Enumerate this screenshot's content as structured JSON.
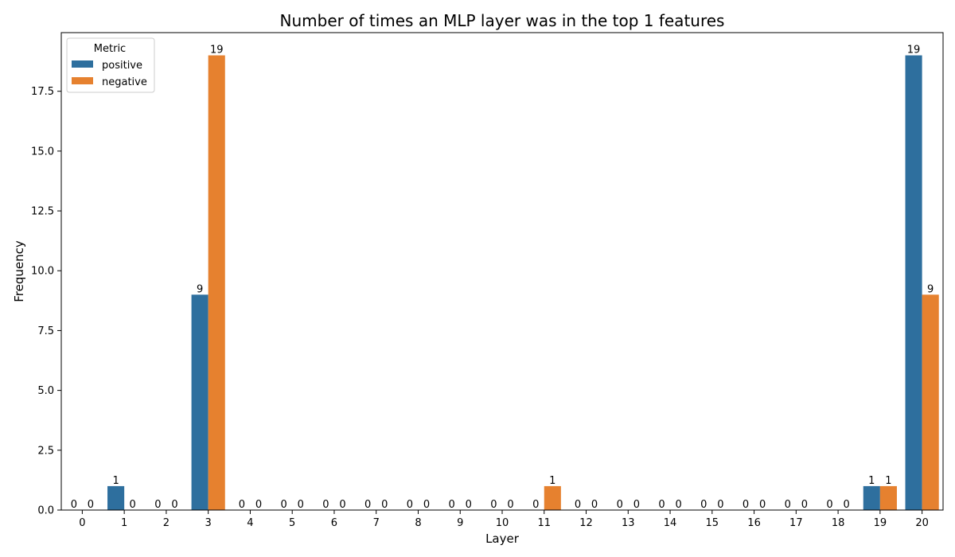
{
  "chart_data": {
    "type": "bar",
    "title": "Number of times an MLP layer was in the top 1 features",
    "xlabel": "Layer",
    "ylabel": "Frequency",
    "categories": [
      "0",
      "1",
      "2",
      "3",
      "4",
      "5",
      "6",
      "7",
      "8",
      "9",
      "10",
      "11",
      "12",
      "13",
      "14",
      "15",
      "16",
      "17",
      "18",
      "19",
      "20"
    ],
    "series": [
      {
        "name": "positive",
        "color": "#2e6f9e",
        "values": [
          0,
          1,
          0,
          9,
          0,
          0,
          0,
          0,
          0,
          0,
          0,
          0,
          0,
          0,
          0,
          0,
          0,
          0,
          0,
          1,
          19
        ]
      },
      {
        "name": "negative",
        "color": "#e6812f",
        "values": [
          0,
          0,
          0,
          19,
          0,
          0,
          0,
          0,
          0,
          0,
          0,
          1,
          0,
          0,
          0,
          0,
          0,
          0,
          0,
          1,
          9
        ]
      }
    ],
    "ylim": [
      0,
      19.95
    ],
    "yticks": [
      "0.0",
      "2.5",
      "5.0",
      "7.5",
      "10.0",
      "12.5",
      "15.0",
      "17.5"
    ],
    "legend": {
      "title": "Metric",
      "placement": "top-left"
    },
    "grid": false
  }
}
